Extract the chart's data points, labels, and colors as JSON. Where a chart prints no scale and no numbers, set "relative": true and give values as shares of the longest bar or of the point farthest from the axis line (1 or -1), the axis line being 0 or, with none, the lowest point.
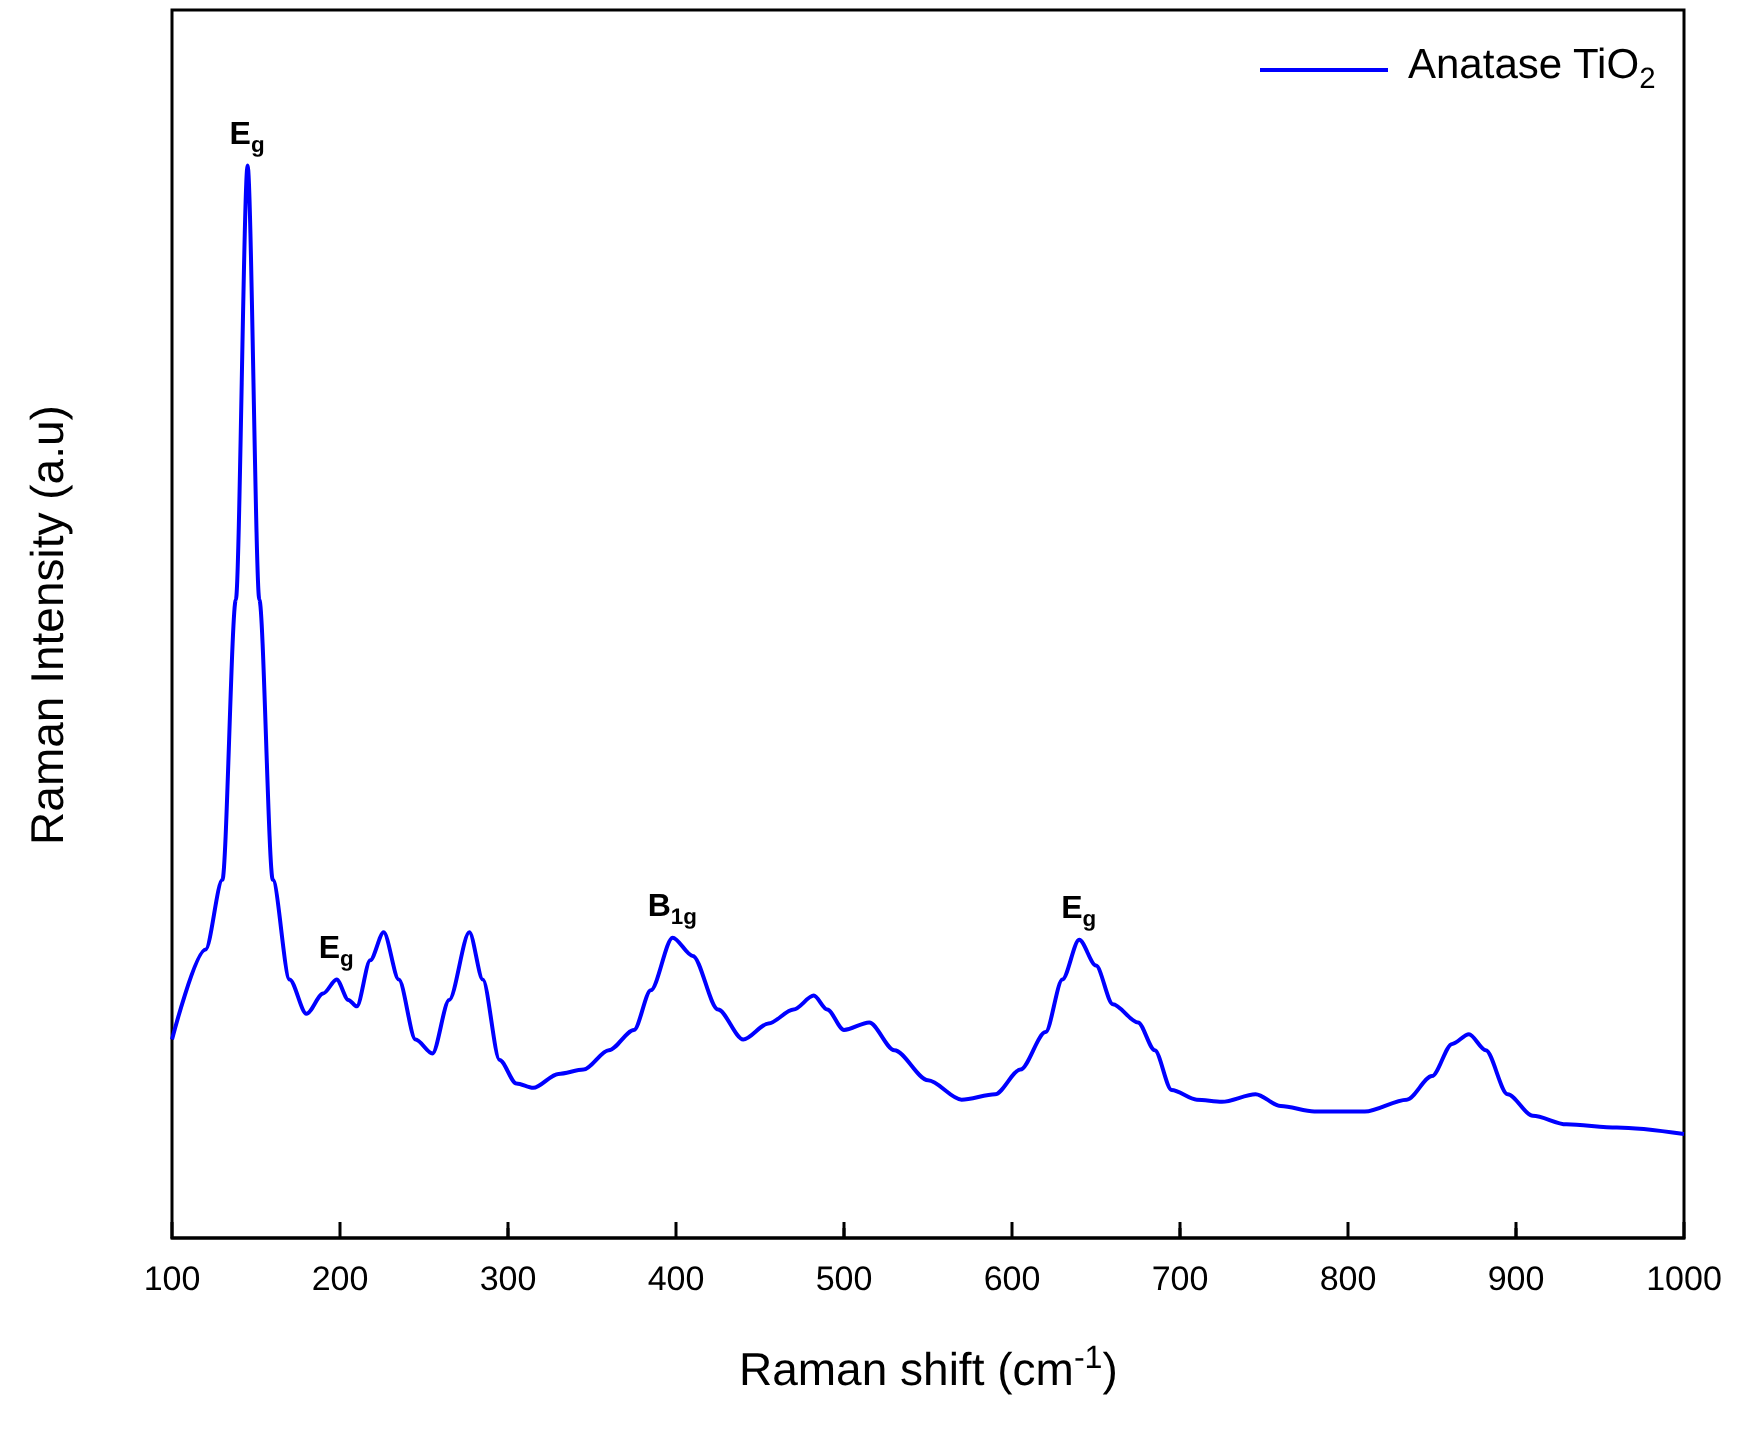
{
  "chart_data": {
    "type": "line",
    "relative": true,
    "xlabel": "Raman shift (cm$^{-1}$)",
    "ylabel": "Raman Intensity (a.u)",
    "x": [
      100,
      120,
      130,
      138,
      145,
      152,
      160,
      170,
      180,
      190,
      198,
      205,
      210,
      218,
      226,
      235,
      245,
      255,
      265,
      277,
      285,
      295,
      305,
      315,
      330,
      345,
      360,
      375,
      385,
      398,
      410,
      425,
      440,
      455,
      470,
      482,
      490,
      500,
      515,
      530,
      550,
      570,
      590,
      605,
      620,
      630,
      640,
      650,
      660,
      675,
      685,
      695,
      710,
      725,
      745,
      760,
      780,
      810,
      835,
      850,
      862,
      872,
      882,
      895,
      910,
      930,
      960,
      1000
    ],
    "series": [
      {
        "name": "Anatase TiO$_{2}$",
        "color": "#0000ff",
        "values": [
          0.185,
          0.269,
          0.334,
          0.595,
          1,
          0.595,
          0.334,
          0.241,
          0.209,
          0.228,
          0.241,
          0.222,
          0.216,
          0.259,
          0.285,
          0.241,
          0.185,
          0.172,
          0.222,
          0.285,
          0.241,
          0.166,
          0.144,
          0.14,
          0.153,
          0.157,
          0.175,
          0.194,
          0.231,
          0.28,
          0.263,
          0.213,
          0.185,
          0.2,
          0.213,
          0.226,
          0.213,
          0.194,
          0.201,
          0.175,
          0.147,
          0.129,
          0.134,
          0.157,
          0.192,
          0.241,
          0.278,
          0.254,
          0.218,
          0.201,
          0.175,
          0.138,
          0.129,
          0.127,
          0.134,
          0.123,
          0.118,
          0.118,
          0.129,
          0.151,
          0.181,
          0.19,
          0.175,
          0.134,
          0.114,
          0.106,
          0.103,
          0.097
        ]
      }
    ],
    "xlim": [
      100,
      1000
    ],
    "xticks": [
      100,
      200,
      300,
      400,
      500,
      600,
      700,
      800,
      900,
      1000
    ],
    "annotations": [
      {
        "text": "E$_{g}$",
        "x": 145,
        "y": 1
      },
      {
        "text": "E$_{g}$",
        "x": 198,
        "y": 0.241
      },
      {
        "text": "B$_{1g}$",
        "x": 398,
        "y": 0.28
      },
      {
        "text": "E$_{g}$",
        "x": 640,
        "y": 0.278
      }
    ],
    "legend": "top right",
    "line_style": "solid",
    "marker": "none",
    "grid": false
  }
}
